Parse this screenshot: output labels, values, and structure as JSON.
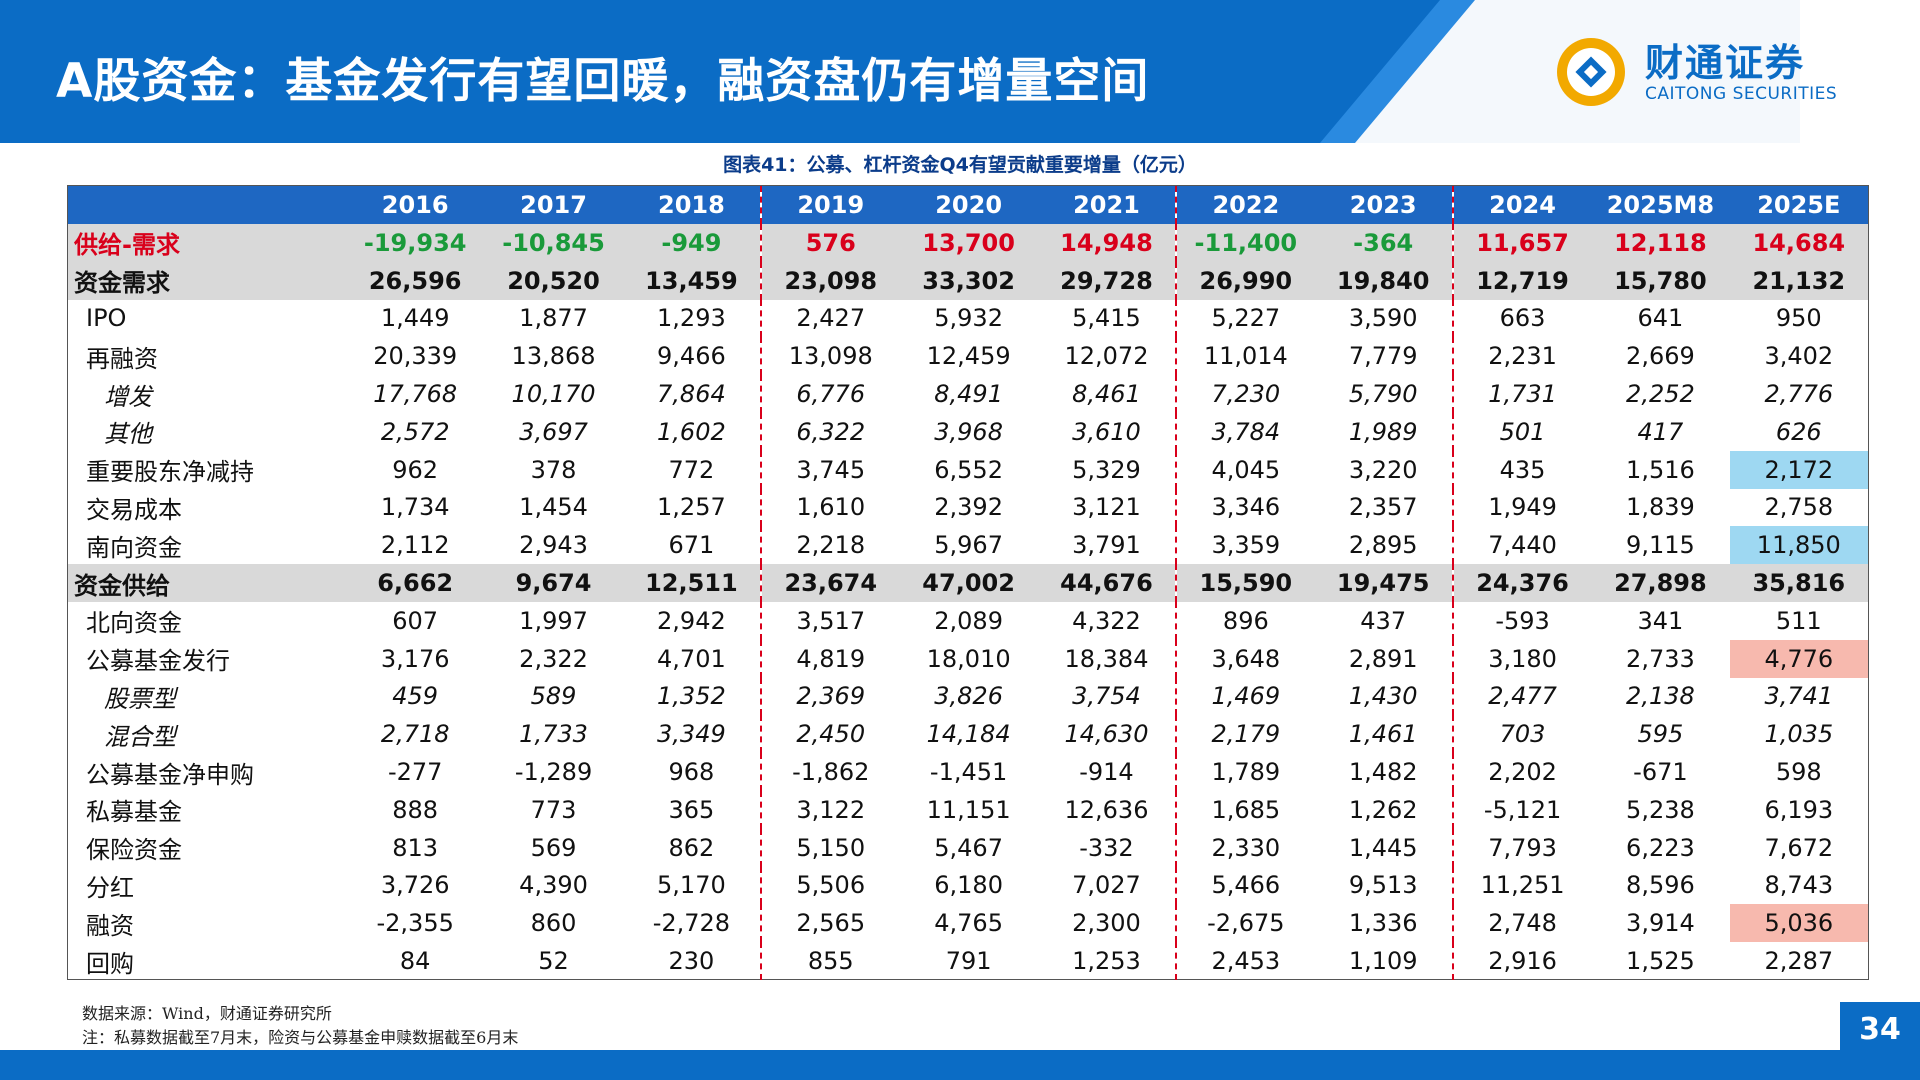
{
  "header": {
    "title": "A股资金：基金发行有望回暖，融资盘仍有增量空间",
    "logo_cn": "财通证券",
    "logo_en": "CAITONG SECURITIES"
  },
  "figure_title": "图表41：公募、杠杆资金Q4有望贡献重要增量（亿元）",
  "table": {
    "columns": [
      "2016",
      "2017",
      "2018",
      "2019",
      "2020",
      "2021",
      "2022",
      "2023",
      "2024",
      "2025M8",
      "2025E"
    ],
    "rows": [
      {
        "label": "供给-需求",
        "values": [
          "-19,934",
          "-10,845",
          "-949",
          "576",
          "13,700",
          "14,948",
          "-11,400",
          "-364",
          "11,657",
          "12,118",
          "14,684"
        ]
      },
      {
        "label": "资金需求",
        "values": [
          "26,596",
          "20,520",
          "13,459",
          "23,098",
          "33,302",
          "29,728",
          "26,990",
          "19,840",
          "12,719",
          "15,780",
          "21,132"
        ]
      },
      {
        "label": "IPO",
        "values": [
          "1,449",
          "1,877",
          "1,293",
          "2,427",
          "5,932",
          "5,415",
          "5,227",
          "3,590",
          "663",
          "641",
          "950"
        ]
      },
      {
        "label": "再融资",
        "values": [
          "20,339",
          "13,868",
          "9,466",
          "13,098",
          "12,459",
          "12,072",
          "11,014",
          "7,779",
          "2,231",
          "2,669",
          "3,402"
        ]
      },
      {
        "label": "增发",
        "values": [
          "17,768",
          "10,170",
          "7,864",
          "6,776",
          "8,491",
          "8,461",
          "7,230",
          "5,790",
          "1,731",
          "2,252",
          "2,776"
        ]
      },
      {
        "label": "其他",
        "values": [
          "2,572",
          "3,697",
          "1,602",
          "6,322",
          "3,968",
          "3,610",
          "3,784",
          "1,989",
          "501",
          "417",
          "626"
        ]
      },
      {
        "label": "重要股东净减持",
        "values": [
          "962",
          "378",
          "772",
          "3,745",
          "6,552",
          "5,329",
          "4,045",
          "3,220",
          "435",
          "1,516",
          "2,172"
        ]
      },
      {
        "label": "交易成本",
        "values": [
          "1,734",
          "1,454",
          "1,257",
          "1,610",
          "2,392",
          "3,121",
          "3,346",
          "2,357",
          "1,949",
          "1,839",
          "2,758"
        ]
      },
      {
        "label": "南向资金",
        "values": [
          "2,112",
          "2,943",
          "671",
          "2,218",
          "5,967",
          "3,791",
          "3,359",
          "2,895",
          "7,440",
          "9,115",
          "11,850"
        ]
      },
      {
        "label": "资金供给",
        "values": [
          "6,662",
          "9,674",
          "12,511",
          "23,674",
          "47,002",
          "44,676",
          "15,590",
          "19,475",
          "24,376",
          "27,898",
          "35,816"
        ]
      },
      {
        "label": "北向资金",
        "values": [
          "607",
          "1,997",
          "2,942",
          "3,517",
          "2,089",
          "4,322",
          "896",
          "437",
          "-593",
          "341",
          "511"
        ]
      },
      {
        "label": "公募基金发行",
        "values": [
          "3,176",
          "2,322",
          "4,701",
          "4,819",
          "18,010",
          "18,384",
          "3,648",
          "2,891",
          "3,180",
          "2,733",
          "4,776"
        ]
      },
      {
        "label": "股票型",
        "values": [
          "459",
          "589",
          "1,352",
          "2,369",
          "3,826",
          "3,754",
          "1,469",
          "1,430",
          "2,477",
          "2,138",
          "3,741"
        ]
      },
      {
        "label": "混合型",
        "values": [
          "2,718",
          "1,733",
          "3,349",
          "2,450",
          "14,184",
          "14,630",
          "2,179",
          "1,461",
          "703",
          "595",
          "1,035"
        ]
      },
      {
        "label": "公募基金净申购",
        "values": [
          "-277",
          "-1,289",
          "968",
          "-1,862",
          "-1,451",
          "-914",
          "1,789",
          "1,482",
          "2,202",
          "-671",
          "598"
        ]
      },
      {
        "label": "私募基金",
        "values": [
          "888",
          "773",
          "365",
          "3,122",
          "11,151",
          "12,636",
          "1,685",
          "1,262",
          "-5,121",
          "5,238",
          "6,193"
        ]
      },
      {
        "label": "保险资金",
        "values": [
          "813",
          "569",
          "862",
          "5,150",
          "5,467",
          "-332",
          "2,330",
          "1,445",
          "7,793",
          "6,223",
          "7,672"
        ]
      },
      {
        "label": "分红",
        "values": [
          "3,726",
          "4,390",
          "5,170",
          "5,506",
          "6,180",
          "7,027",
          "5,466",
          "9,513",
          "11,251",
          "8,596",
          "8,743"
        ]
      },
      {
        "label": "融资",
        "values": [
          "-2,355",
          "860",
          "-2,728",
          "2,565",
          "4,765",
          "2,300",
          "-2,675",
          "1,336",
          "2,748",
          "3,914",
          "5,036"
        ]
      },
      {
        "label": "回购",
        "values": [
          "84",
          "52",
          "230",
          "855",
          "791",
          "1,253",
          "2,453",
          "1,109",
          "2,916",
          "1,525",
          "2,287"
        ]
      }
    ]
  },
  "footer": {
    "source": "数据来源：Wind，财通证券研究所",
    "note": "注：私募数据截至7月末，险资与公募基金申赎数据截至6月末",
    "page": "34"
  },
  "colors": {
    "brand_blue": "#0b6cc5",
    "header_row_blue": "#1e67c2",
    "positive_red": "#d9001b",
    "negative_green": "#1a9a3a",
    "highlight_blue": "#9ed8f2",
    "highlight_pink": "#f7b9ae"
  }
}
